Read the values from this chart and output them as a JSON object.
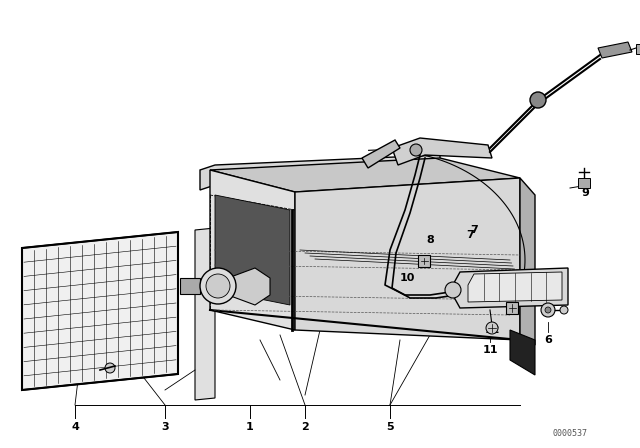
{
  "bg_color": "#ffffff",
  "watermark": "0000537",
  "line_color": "#000000",
  "part_label_fs": 8
}
